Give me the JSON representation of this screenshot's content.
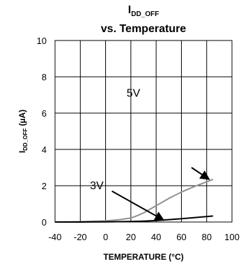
{
  "chart_data": {
    "type": "line",
    "title_main": "I",
    "title_sub": "DD_OFF",
    "title_line2": "vs. Temperature",
    "xlabel": "TEMPERATURE (°C)",
    "ylabel_main": "I",
    "ylabel_sub": "DD_OFF",
    "ylabel_unit": " (µA)",
    "xlim": [
      -40,
      100
    ],
    "ylim": [
      0,
      10
    ],
    "xticks": [
      -40,
      -20,
      0,
      20,
      40,
      60,
      80,
      100
    ],
    "yticks": [
      0,
      2,
      4,
      6,
      8,
      10
    ],
    "grid": true,
    "series": [
      {
        "name": "5V",
        "color": "#909090",
        "x": [
          -40,
          -20,
          0,
          10,
          20,
          25,
          30,
          40,
          50,
          60,
          70,
          85
        ],
        "y": [
          0.0,
          0.02,
          0.06,
          0.12,
          0.22,
          0.35,
          0.5,
          0.9,
          1.3,
          1.65,
          1.95,
          2.35
        ]
      },
      {
        "name": "3V",
        "color": "#000000",
        "x": [
          -40,
          -20,
          0,
          20,
          30,
          40,
          50,
          60,
          70,
          85
        ],
        "y": [
          0.0,
          0.0,
          0.01,
          0.03,
          0.05,
          0.08,
          0.13,
          0.18,
          0.24,
          0.33
        ]
      }
    ],
    "annotations": [
      {
        "label": "5V",
        "x": 22,
        "y": 6.9,
        "arrow_from": [
          68,
          3.0
        ],
        "arrow_to": [
          82,
          2.35
        ]
      },
      {
        "label": "3V",
        "x": -7,
        "y": 1.8,
        "arrow_from": [
          5,
          1.7
        ],
        "arrow_to": [
          46,
          0.1
        ]
      }
    ]
  }
}
